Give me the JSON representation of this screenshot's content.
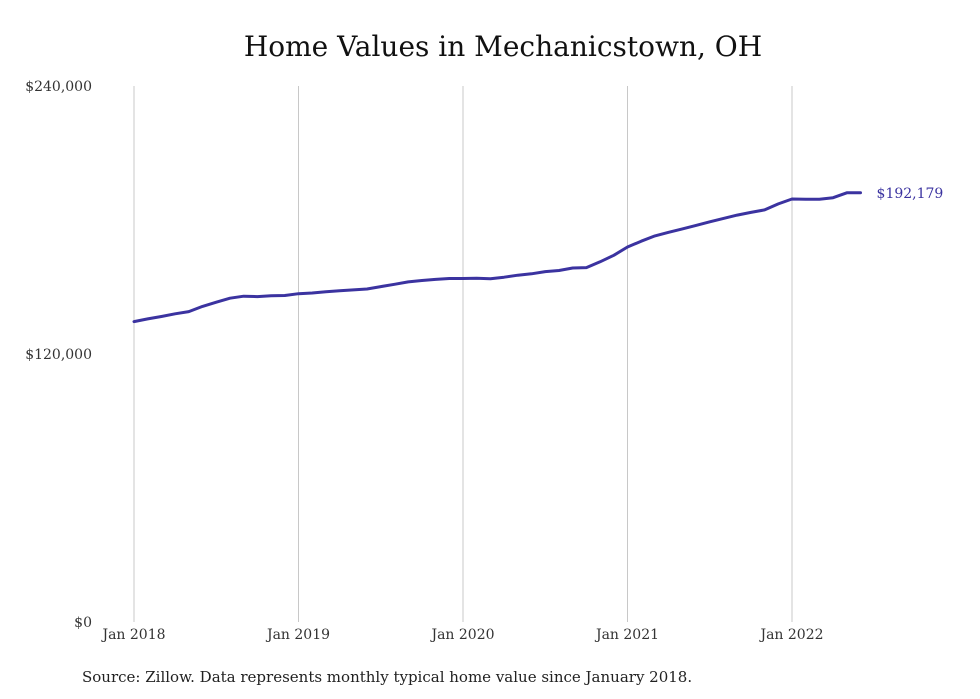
{
  "chart_data": {
    "type": "line",
    "title": "Home Values in Mechanicstown, OH",
    "xlabel": "",
    "ylabel": "",
    "ylim": [
      0,
      240000
    ],
    "yticks": [
      {
        "value": 0,
        "label": "$0"
      },
      {
        "value": 120000,
        "label": "$120,000"
      },
      {
        "value": 240000,
        "label": "$240,000"
      }
    ],
    "xticks": [
      {
        "value": "2018-01",
        "label": "Jan 2018"
      },
      {
        "value": "2019-01",
        "label": "Jan 2019"
      },
      {
        "value": "2020-01",
        "label": "Jan 2020"
      },
      {
        "value": "2021-01",
        "label": "Jan 2021"
      },
      {
        "value": "2022-01",
        "label": "Jan 2022"
      }
    ],
    "grid": "vertical",
    "line_color": "#3b33a0",
    "end_label": "$192,179",
    "series": [
      {
        "x": [
          "2018-01",
          "2018-02",
          "2018-03",
          "2018-04",
          "2018-05",
          "2018-06",
          "2018-07",
          "2018-08",
          "2018-09",
          "2018-10",
          "2018-11",
          "2018-12",
          "2019-01",
          "2019-02",
          "2019-03",
          "2019-04",
          "2019-05",
          "2019-06",
          "2019-07",
          "2019-08",
          "2019-09",
          "2019-10",
          "2019-11",
          "2019-12",
          "2020-01",
          "2020-02",
          "2020-03",
          "2020-04",
          "2020-05",
          "2020-06",
          "2020-07",
          "2020-08",
          "2020-09",
          "2020-10",
          "2020-11",
          "2020-12",
          "2021-01",
          "2021-02",
          "2021-03",
          "2021-04",
          "2021-05",
          "2021-06",
          "2021-07",
          "2021-08",
          "2021-09",
          "2021-10",
          "2021-11",
          "2021-12",
          "2022-01",
          "2022-02",
          "2022-03",
          "2022-04",
          "2022-05",
          "2022-06"
        ],
        "values": [
          134500,
          135700,
          136800,
          138000,
          139000,
          141300,
          143200,
          145000,
          145900,
          145700,
          146100,
          146200,
          147000,
          147300,
          147900,
          148300,
          148700,
          149100,
          150200,
          151200,
          152300,
          152900,
          153400,
          153800,
          153800,
          153900,
          153700,
          154400,
          155300,
          155900,
          156900,
          157400,
          158500,
          158700,
          161300,
          164200,
          167900,
          170500,
          172900,
          174500,
          176000,
          177600,
          179200,
          180700,
          182200,
          183400,
          184500,
          187200,
          189400,
          189300,
          189300,
          190000,
          192179,
          192179
        ]
      }
    ],
    "source": "Source: Zillow. Data represents monthly typical home value since January 2018."
  }
}
